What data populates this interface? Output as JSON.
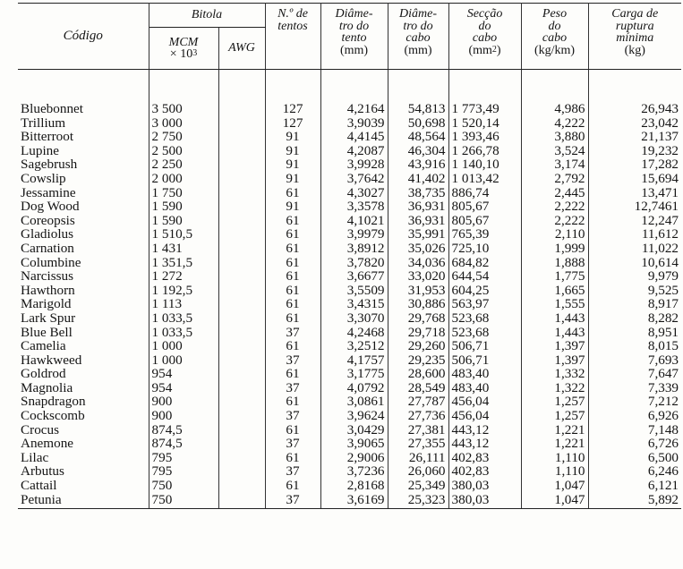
{
  "header": {
    "codigo": "Código",
    "bitola": "Bitola",
    "mcm": "MCM",
    "mcm_unit": "× 10",
    "mcm_exp": "3",
    "awg": "AWG",
    "n_tentos_1": "N.º de",
    "n_tentos_2": "tentos",
    "diam_tento_1": "Diâme-",
    "diam_tento_2": "tro do",
    "diam_tento_3": "tento",
    "diam_tento_unit": "(mm)",
    "diam_cabo_1": "Diâme-",
    "diam_cabo_2": "tro do",
    "diam_cabo_3": "cabo",
    "diam_cabo_unit": "(mm)",
    "seccao_1": "Secção",
    "seccao_2": "do",
    "seccao_3": "cabo",
    "seccao_unit": "(mm",
    "seccao_exp": "2",
    "seccao_close": ")",
    "peso_1": "Peso",
    "peso_2": "do",
    "peso_3": "cabo",
    "peso_unit": "(kg/km)",
    "carga_1": "Carga de",
    "carga_2": "ruptura",
    "carga_3": "mínima",
    "carga_unit": "(kg)"
  },
  "rows": [
    {
      "codigo": "Bluebonnet",
      "mcm": "3 500",
      "awg": "",
      "tentos": "127",
      "diam_tento": "4,2164",
      "diam_cabo": "54,813",
      "seccao": "1 773,49",
      "peso": "4,986",
      "carga": "26,943"
    },
    {
      "codigo": "Trillium",
      "mcm": "3 000",
      "awg": "",
      "tentos": "127",
      "diam_tento": "3,9039",
      "diam_cabo": "50,698",
      "seccao": "1 520,14",
      "peso": "4,222",
      "carga": "23,042"
    },
    {
      "codigo": "Bitterroot",
      "mcm": "2 750",
      "awg": "",
      "tentos": "91",
      "diam_tento": "4,4145",
      "diam_cabo": "48,564",
      "seccao": "1 393,46",
      "peso": "3,880",
      "carga": "21,137"
    },
    {
      "codigo": "Lupine",
      "mcm": "2 500",
      "awg": "",
      "tentos": "91",
      "diam_tento": "4,2087",
      "diam_cabo": "46,304",
      "seccao": "1 266,78",
      "peso": "3,524",
      "carga": "19,232"
    },
    {
      "codigo": "Sagebrush",
      "mcm": "2 250",
      "awg": "",
      "tentos": "91",
      "diam_tento": "3,9928",
      "diam_cabo": "43,916",
      "seccao": "1 140,10",
      "peso": "3,174",
      "carga": "17,282"
    },
    {
      "codigo": "Cowslip",
      "mcm": "2 000",
      "awg": "",
      "tentos": "91",
      "diam_tento": "3,7642",
      "diam_cabo": "41,402",
      "seccao": "1 013,42",
      "peso": "2,792",
      "carga": "15,694"
    },
    {
      "codigo": "Jessamine",
      "mcm": "1 750",
      "awg": "",
      "tentos": "61",
      "diam_tento": "4,3027",
      "diam_cabo": "38,735",
      "seccao": "886,74",
      "peso": "2,445",
      "carga": "13,471"
    },
    {
      "codigo": "Dog Wood",
      "mcm": "1 590",
      "awg": "",
      "tentos": "91",
      "diam_tento": "3,3578",
      "diam_cabo": "36,931",
      "seccao": "805,67",
      "peso": "2,222",
      "carga": "12,7461"
    },
    {
      "codigo": "Coreopsis",
      "mcm": "1 590",
      "awg": "",
      "tentos": "61",
      "diam_tento": "4,1021",
      "diam_cabo": "36,931",
      "seccao": "805,67",
      "peso": "2,222",
      "carga": "12,247"
    },
    {
      "codigo": "Gladiolus",
      "mcm": "1 510,5",
      "awg": "",
      "tentos": "61",
      "diam_tento": "3,9979",
      "diam_cabo": "35,991",
      "seccao": "765,39",
      "peso": "2,110",
      "carga": "11,612"
    },
    {
      "codigo": "Carnation",
      "mcm": "1 431",
      "awg": "",
      "tentos": "61",
      "diam_tento": "3,8912",
      "diam_cabo": "35,026",
      "seccao": "725,10",
      "peso": "1,999",
      "carga": "11,022"
    },
    {
      "codigo": "Columbine",
      "mcm": "1 351,5",
      "awg": "",
      "tentos": "61",
      "diam_tento": "3,7820",
      "diam_cabo": "34,036",
      "seccao": "684,82",
      "peso": "1,888",
      "carga": "10,614"
    },
    {
      "codigo": "Narcissus",
      "mcm": "1 272",
      "awg": "",
      "tentos": "61",
      "diam_tento": "3,6677",
      "diam_cabo": "33,020",
      "seccao": "644,54",
      "peso": "1,775",
      "carga": "9,979"
    },
    {
      "codigo": "Hawthorn",
      "mcm": "1 192,5",
      "awg": "",
      "tentos": "61",
      "diam_tento": "3,5509",
      "diam_cabo": "31,953",
      "seccao": "604,25",
      "peso": "1,665",
      "carga": "9,525"
    },
    {
      "codigo": "Marigold",
      "mcm": "1 113",
      "awg": "",
      "tentos": "61",
      "diam_tento": "3,4315",
      "diam_cabo": "30,886",
      "seccao": "563,97",
      "peso": "1,555",
      "carga": "8,917"
    },
    {
      "codigo": "Lark Spur",
      "mcm": "1 033,5",
      "awg": "",
      "tentos": "61",
      "diam_tento": "3,3070",
      "diam_cabo": "29,768",
      "seccao": "523,68",
      "peso": "1,443",
      "carga": "8,282"
    },
    {
      "codigo": "Blue Bell",
      "mcm": "1 033,5",
      "awg": "",
      "tentos": "37",
      "diam_tento": "4,2468",
      "diam_cabo": "29,718",
      "seccao": "523,68",
      "peso": "1,443",
      "carga": "8,951"
    },
    {
      "codigo": "Camelia",
      "mcm": "1 000",
      "awg": "",
      "tentos": "61",
      "diam_tento": "3,2512",
      "diam_cabo": "29,260",
      "seccao": "506,71",
      "peso": "1,397",
      "carga": "8,015"
    },
    {
      "codigo": "Hawkweed",
      "mcm": "1 000",
      "awg": "",
      "tentos": "37",
      "diam_tento": "4,1757",
      "diam_cabo": "29,235",
      "seccao": "506,71",
      "peso": "1,397",
      "carga": "7,693"
    },
    {
      "codigo": "Goldrod",
      "mcm": "954",
      "awg": "",
      "tentos": "61",
      "diam_tento": "3,1775",
      "diam_cabo": "28,600",
      "seccao": "483,40",
      "peso": "1,332",
      "carga": "7,647"
    },
    {
      "codigo": "Magnolia",
      "mcm": "954",
      "awg": "",
      "tentos": "37",
      "diam_tento": "4,0792",
      "diam_cabo": "28,549",
      "seccao": "483,40",
      "peso": "1,322",
      "carga": "7,339"
    },
    {
      "codigo": "Snapdragon",
      "mcm": "900",
      "awg": "",
      "tentos": "61",
      "diam_tento": "3,0861",
      "diam_cabo": "27,787",
      "seccao": "456,04",
      "peso": "1,257",
      "carga": "7,212"
    },
    {
      "codigo": "Cockscomb",
      "mcm": "900",
      "awg": "",
      "tentos": "37",
      "diam_tento": "3,9624",
      "diam_cabo": "27,736",
      "seccao": "456,04",
      "peso": "1,257",
      "carga": "6,926"
    },
    {
      "codigo": "Crocus",
      "mcm": "874,5",
      "awg": "",
      "tentos": "61",
      "diam_tento": "3,0429",
      "diam_cabo": "27,381",
      "seccao": "443,12",
      "peso": "1,221",
      "carga": "7,148"
    },
    {
      "codigo": "Anemone",
      "mcm": "874,5",
      "awg": "",
      "tentos": "37",
      "diam_tento": "3,9065",
      "diam_cabo": "27,355",
      "seccao": "443,12",
      "peso": "1,221",
      "carga": "6,726"
    },
    {
      "codigo": "Lilac",
      "mcm": "795",
      "awg": "",
      "tentos": "61",
      "diam_tento": "2,9006",
      "diam_cabo": "26,111",
      "seccao": "402,83",
      "peso": "1,110",
      "carga": "6,500"
    },
    {
      "codigo": "Arbutus",
      "mcm": "795",
      "awg": "",
      "tentos": "37",
      "diam_tento": "3,7236",
      "diam_cabo": "26,060",
      "seccao": "402,83",
      "peso": "1,110",
      "carga": "6,246"
    },
    {
      "codigo": "Cattail",
      "mcm": "750",
      "awg": "",
      "tentos": "61",
      "diam_tento": "2,8168",
      "diam_cabo": "25,349",
      "seccao": "380,03",
      "peso": "1,047",
      "carga": "6,121"
    },
    {
      "codigo": "Petunia",
      "mcm": "750",
      "awg": "",
      "tentos": "37",
      "diam_tento": "3,6169",
      "diam_cabo": "25,323",
      "seccao": "380,03",
      "peso": "1,047",
      "carga": "5,892"
    }
  ]
}
